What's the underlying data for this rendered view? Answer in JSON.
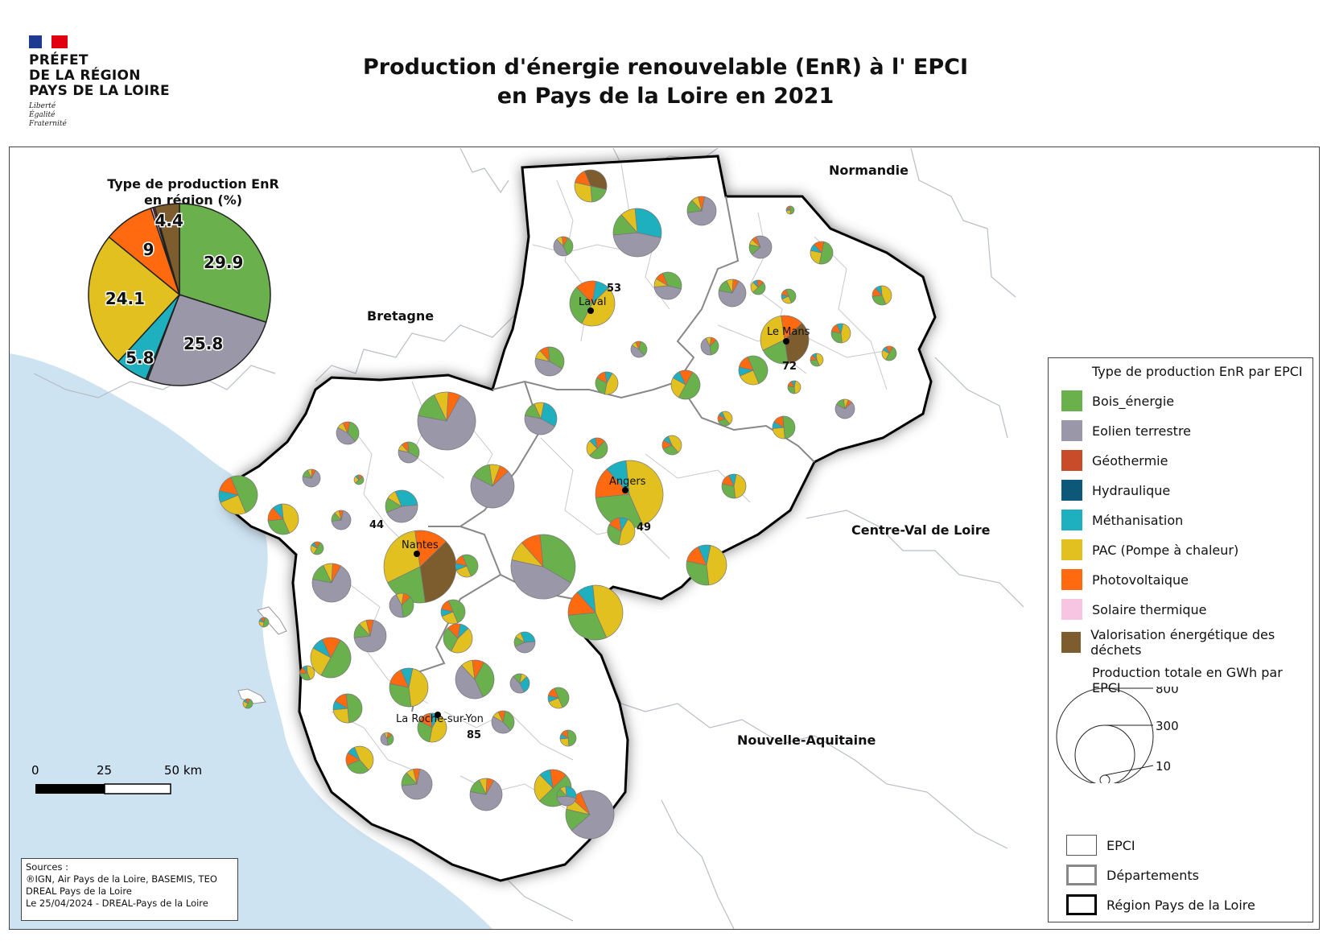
{
  "header": {
    "logo_lines": [
      "PRÉFET",
      "DE LA RÉGION",
      "PAYS DE LA LOIRE"
    ],
    "motto": [
      "Liberté",
      "Égalité",
      "Fraternité"
    ],
    "title_line1": "Production d'énergie renouvelable (EnR) à l' EPCI",
    "title_line2": "en Pays de la Loire en 2021"
  },
  "colors": {
    "bois_energie": "#6ab04c",
    "eolien": "#9a97a8",
    "geothermie": "#c84b2a",
    "hydraulique": "#0d5878",
    "methanisation": "#1fb0c0",
    "pac": "#e1c020",
    "photovoltaique": "#ff6a10",
    "solaire_thermique": "#f7c4e2",
    "dechets": "#7d5c2e",
    "sea": "#cde3f2"
  },
  "chart_data": {
    "type": "pie",
    "title": "Type de production EnR en région (%)",
    "title_line1": "Type de production EnR",
    "title_line2": "en région (%)",
    "slices": [
      {
        "label": "Bois_énergie",
        "value": 29.9,
        "text": "29.9",
        "color": "#6ab04c"
      },
      {
        "label": "Eolien terrestre",
        "value": 25.8,
        "text": "25.8",
        "color": "#9a97a8"
      },
      {
        "label": "Hydraulique",
        "value": 0.3,
        "text": "",
        "color": "#0d5878"
      },
      {
        "label": "Méthanisation",
        "value": 5.8,
        "text": "5.8",
        "color": "#1fb0c0"
      },
      {
        "label": "PAC (Pompe à chaleur)",
        "value": 24.1,
        "text": "24.1",
        "color": "#e1c020"
      },
      {
        "label": "Photovoltaique",
        "value": 9,
        "text": "9",
        "color": "#ff6a10"
      },
      {
        "label": "Solaire thermique",
        "value": 0.4,
        "text": "",
        "color": "#f7c4e2"
      },
      {
        "label": "Géothermie",
        "value": 0.3,
        "text": "",
        "color": "#c84b2a"
      },
      {
        "label": "Valorisation énergétique des déchets",
        "value": 4.4,
        "text": "4.4",
        "color": "#7d5c2e"
      }
    ]
  },
  "map": {
    "regions": [
      "Normandie",
      "Bretagne",
      "Centre-Val de Loire",
      "Nouvelle-Aquitaine"
    ],
    "cities": [
      "Laval",
      "Le Mans",
      "Angers",
      "Nantes",
      "La Roche-sur-Yon"
    ],
    "departments": [
      "53",
      "72",
      "49",
      "44",
      "85"
    ]
  },
  "legend": {
    "title": "Type de production EnR par EPCI",
    "items": [
      {
        "label": "Bois_énergie",
        "color": "#6ab04c"
      },
      {
        "label": "Eolien terrestre",
        "color": "#9a97a8"
      },
      {
        "label": "Géothermie",
        "color": "#c84b2a"
      },
      {
        "label": "Hydraulique",
        "color": "#0d5878"
      },
      {
        "label": "Méthanisation",
        "color": "#1fb0c0"
      },
      {
        "label": "PAC (Pompe à chaleur)",
        "color": "#e1c020"
      },
      {
        "label": "Photovoltaique",
        "color": "#ff6a10"
      },
      {
        "label": "Solaire thermique",
        "color": "#f7c4e2"
      },
      {
        "label": "Valorisation énergétique des déchets",
        "color": "#7d5c2e"
      }
    ],
    "size_title": "Production totale en GWh par EPCI",
    "size_values": [
      800,
      300,
      10
    ],
    "size_labels": [
      "800",
      "300",
      "10"
    ],
    "boundaries": [
      "EPCI",
      "Départements",
      "Région Pays de la Loire"
    ]
  },
  "scalebar": {
    "labels": [
      "0",
      "25",
      "50 km"
    ]
  },
  "sources": {
    "lines": [
      "Sources :",
      "®IGN, Air Pays de la Loire, BASEMIS, TEO",
      "DREAL Pays de la Loire",
      "Le 25/04/2024 - DREAL-Pays de la Loire"
    ]
  }
}
